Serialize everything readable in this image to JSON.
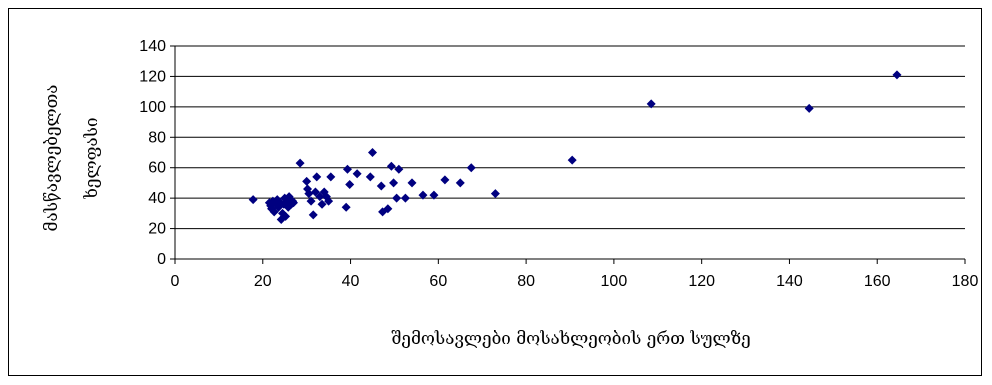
{
  "chart_data": {
    "type": "scatter",
    "title": "",
    "xlabel": "შემოსავლები მოსახლეობის ერთ სულზე",
    "ylabel_line1": "მასწავლებელთა",
    "ylabel_line2": "ხელფასი",
    "xlim": [
      0,
      180
    ],
    "ylim": [
      0,
      140
    ],
    "xticks": [
      0,
      20,
      40,
      60,
      80,
      100,
      120,
      140,
      160,
      180
    ],
    "yticks": [
      0,
      20,
      40,
      60,
      80,
      100,
      120,
      140
    ],
    "grid": "horizontal",
    "legend": "none",
    "marker": "diamond",
    "marker_color": "#000080",
    "points": [
      [
        17.8,
        39
      ],
      [
        21.5,
        37
      ],
      [
        21.8,
        35
      ],
      [
        22,
        33
      ],
      [
        22.3,
        38
      ],
      [
        22.6,
        31
      ],
      [
        23,
        36
      ],
      [
        23.3,
        39
      ],
      [
        23.6,
        34
      ],
      [
        24,
        37
      ],
      [
        24.2,
        26
      ],
      [
        24.5,
        30
      ],
      [
        24.8,
        36
      ],
      [
        25,
        40
      ],
      [
        25.2,
        28
      ],
      [
        25.5,
        37
      ],
      [
        25.8,
        34
      ],
      [
        26,
        41
      ],
      [
        26.2,
        39
      ],
      [
        26.5,
        36
      ],
      [
        26.8,
        38
      ],
      [
        27,
        37
      ],
      [
        28.5,
        63
      ],
      [
        30,
        51
      ],
      [
        30.2,
        46
      ],
      [
        30.5,
        43
      ],
      [
        31,
        38
      ],
      [
        31.5,
        29
      ],
      [
        32,
        44
      ],
      [
        32.3,
        54
      ],
      [
        33,
        41
      ],
      [
        33.5,
        36
      ],
      [
        34,
        44
      ],
      [
        34.5,
        41
      ],
      [
        35,
        38
      ],
      [
        35.5,
        54
      ],
      [
        39,
        34
      ],
      [
        39.3,
        59
      ],
      [
        39.8,
        49
      ],
      [
        41.5,
        56
      ],
      [
        44.5,
        54
      ],
      [
        45,
        70
      ],
      [
        47,
        48
      ],
      [
        47.3,
        31
      ],
      [
        48.5,
        33
      ],
      [
        49.3,
        61
      ],
      [
        49.8,
        50
      ],
      [
        50.5,
        40
      ],
      [
        51,
        59
      ],
      [
        52.5,
        40
      ],
      [
        54,
        50
      ],
      [
        56.5,
        42
      ],
      [
        59,
        42
      ],
      [
        61.5,
        52
      ],
      [
        65,
        50
      ],
      [
        67.5,
        60
      ],
      [
        73,
        43
      ],
      [
        90.5,
        65
      ],
      [
        108.5,
        102
      ],
      [
        144.5,
        99
      ],
      [
        164.5,
        121
      ]
    ]
  }
}
